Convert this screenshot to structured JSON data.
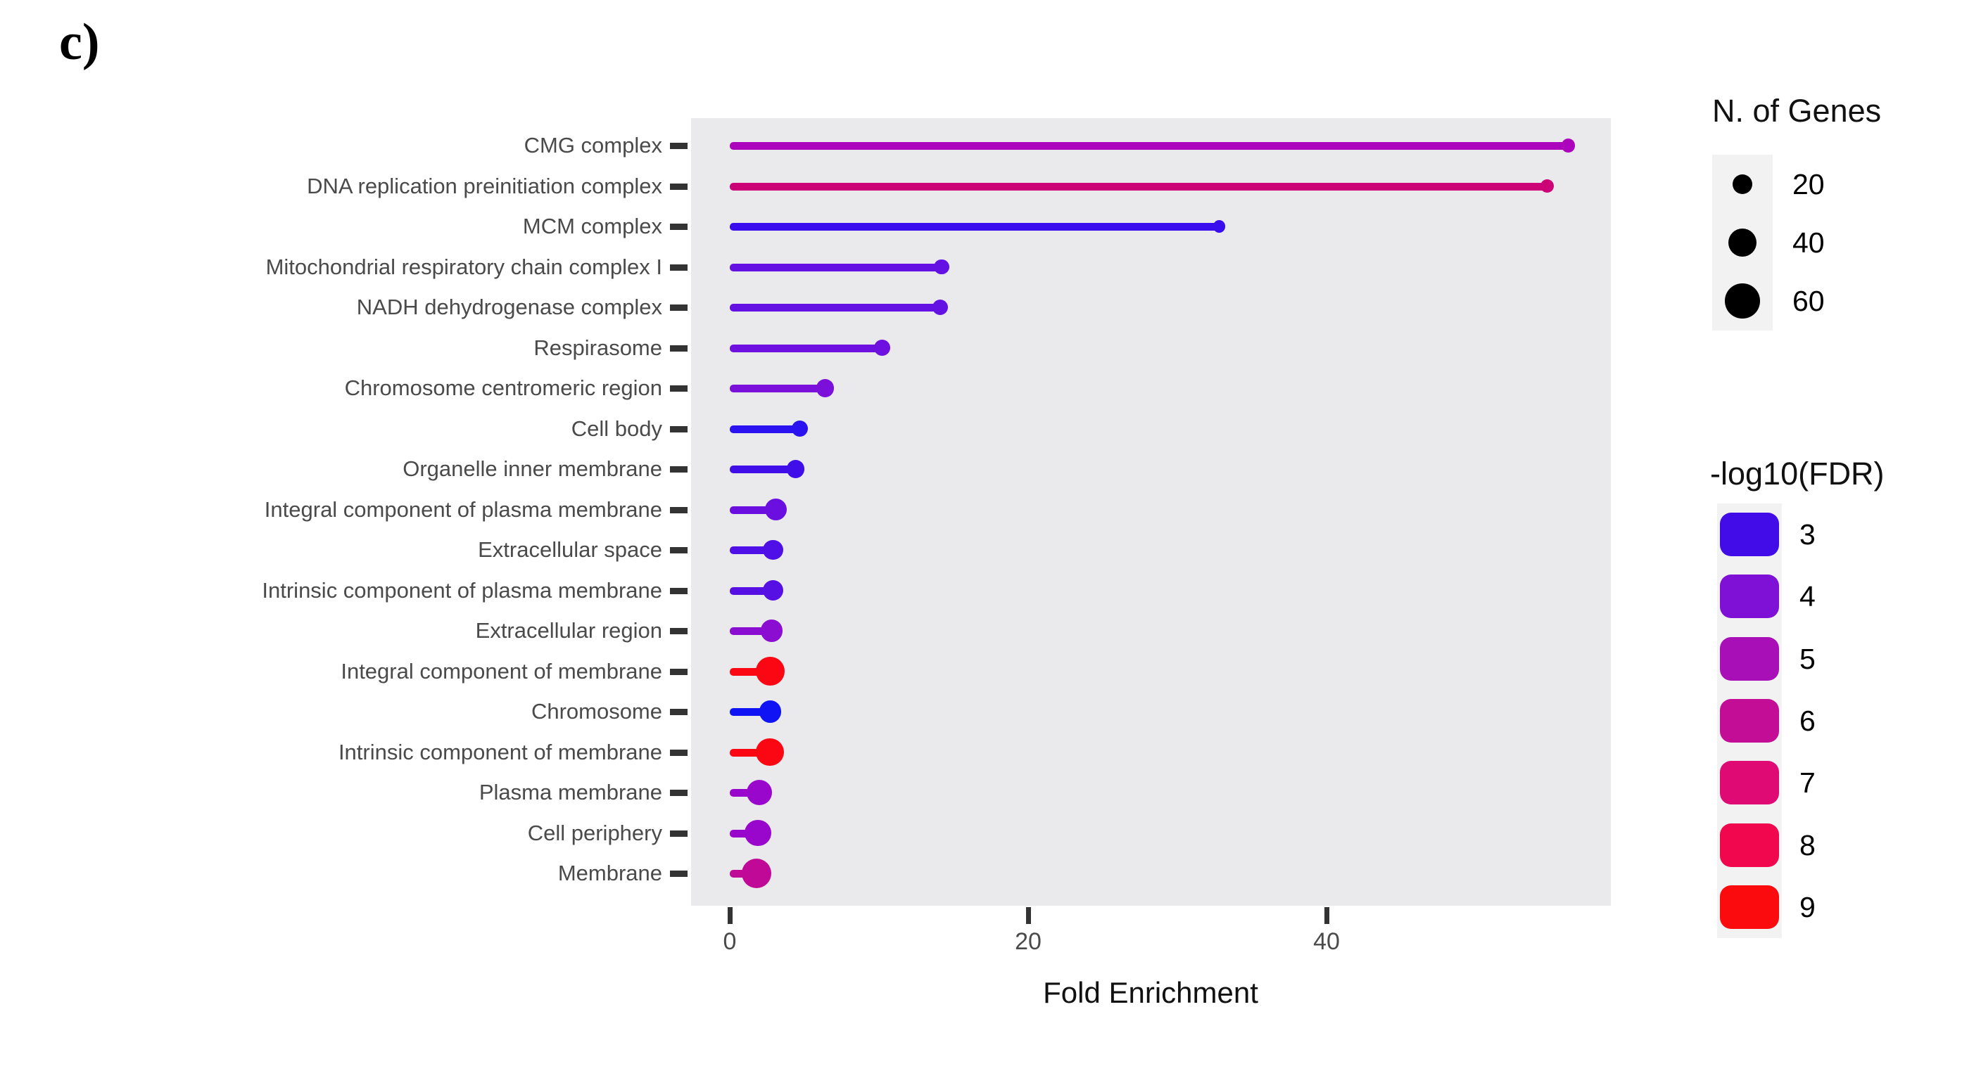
{
  "figure": {
    "label": "c)"
  },
  "chart_data": {
    "type": "lollipop",
    "xlabel": "Fold Enrichment",
    "ylabel": "",
    "xlim": [
      0,
      59
    ],
    "x_ticks": [
      {
        "value": 0,
        "label": "0"
      },
      {
        "value": 20,
        "label": "20"
      },
      {
        "value": 40,
        "label": "40"
      }
    ],
    "grid": false,
    "panel_bg": "#EAEAEC",
    "rows": [
      {
        "label": "CMG complex",
        "fold_enrichment": 56.2,
        "n_genes": 10,
        "log10_fdr": 5.5,
        "color": "#AC04BC"
      },
      {
        "label": "DNA replication preinitiation complex",
        "fold_enrichment": 54.8,
        "n_genes": 10,
        "log10_fdr": 7.0,
        "color": "#CC0377"
      },
      {
        "label": "MCM complex",
        "fold_enrichment": 32.8,
        "n_genes": 8,
        "log10_fdr": 3.2,
        "color": "#3A0DEE"
      },
      {
        "label": "Mitochondrial respiratory chain complex I",
        "fold_enrichment": 14.2,
        "n_genes": 13,
        "log10_fdr": 3.9,
        "color": "#6411E4"
      },
      {
        "label": "NADH dehydrogenase complex",
        "fold_enrichment": 14.1,
        "n_genes": 13,
        "log10_fdr": 3.9,
        "color": "#6411E4"
      },
      {
        "label": "Respirasome",
        "fold_enrichment": 10.2,
        "n_genes": 14,
        "log10_fdr": 4.0,
        "color": "#6D10E0"
      },
      {
        "label": "Chromosome centromeric region",
        "fold_enrichment": 6.4,
        "n_genes": 17,
        "log10_fdr": 4.3,
        "color": "#7C10DB"
      },
      {
        "label": "Cell body",
        "fold_enrichment": 4.7,
        "n_genes": 15,
        "log10_fdr": 3.1,
        "color": "#2B12F0"
      },
      {
        "label": "Organelle inner membrane",
        "fold_enrichment": 4.4,
        "n_genes": 17,
        "log10_fdr": 3.3,
        "color": "#3F0EE9"
      },
      {
        "label": "Integral component of plasma membrane",
        "fold_enrichment": 3.1,
        "n_genes": 26,
        "log10_fdr": 4.0,
        "color": "#6B0FE0"
      },
      {
        "label": "Extracellular space",
        "fold_enrichment": 2.9,
        "n_genes": 22,
        "log10_fdr": 3.5,
        "color": "#4F10E7"
      },
      {
        "label": "Intrinsic component of plasma membrane",
        "fold_enrichment": 2.9,
        "n_genes": 24,
        "log10_fdr": 3.6,
        "color": "#5710E4"
      },
      {
        "label": "Extracellular region",
        "fold_enrichment": 2.8,
        "n_genes": 27,
        "log10_fdr": 4.5,
        "color": "#8B0DD1"
      },
      {
        "label": "Integral component of membrane",
        "fold_enrichment": 2.7,
        "n_genes": 46,
        "log10_fdr": 9.0,
        "color": "#FA0713"
      },
      {
        "label": "Chromosome",
        "fold_enrichment": 2.7,
        "n_genes": 26,
        "log10_fdr": 3.0,
        "color": "#1013F4"
      },
      {
        "label": "Intrinsic component of membrane",
        "fold_enrichment": 2.7,
        "n_genes": 42,
        "log10_fdr": 9.0,
        "color": "#FA0713"
      },
      {
        "label": "Plasma membrane",
        "fold_enrichment": 2.0,
        "n_genes": 35,
        "log10_fdr": 4.8,
        "color": "#9807CB"
      },
      {
        "label": "Cell periphery",
        "fold_enrichment": 1.9,
        "n_genes": 38,
        "log10_fdr": 4.8,
        "color": "#9807CB"
      },
      {
        "label": "Membrane",
        "fold_enrichment": 1.8,
        "n_genes": 49,
        "log10_fdr": 5.9,
        "color": "#C00A97"
      }
    ],
    "legends": {
      "size": {
        "title": "N. of Genes",
        "entries": [
          {
            "label": "20",
            "value": 20
          },
          {
            "label": "40",
            "value": 40
          },
          {
            "label": "60",
            "value": 60
          }
        ],
        "dot_color": "#000000"
      },
      "color": {
        "title": "-log10(FDR)",
        "entries": [
          {
            "label": "3",
            "color": "#410CE8"
          },
          {
            "label": "4",
            "color": "#7F11D6"
          },
          {
            "label": "5",
            "color": "#A90FB7"
          },
          {
            "label": "6",
            "color": "#C40D96"
          },
          {
            "label": "7",
            "color": "#DF0A74"
          },
          {
            "label": "8",
            "color": "#F1074D"
          },
          {
            "label": "9",
            "color": "#FB0A0E"
          }
        ]
      }
    }
  }
}
